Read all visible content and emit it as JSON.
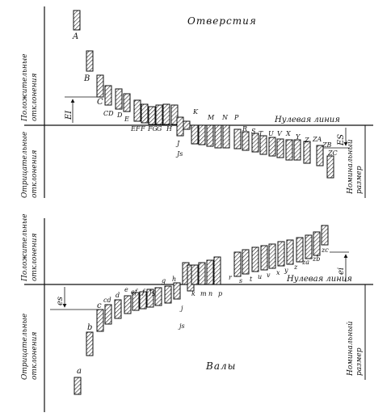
{
  "holes": {
    "title": "Отверстия",
    "zero_line_label": "Нулевая линия",
    "positive_label": [
      "Положительные",
      "отклонения"
    ],
    "negative_label": [
      "Отрицательные",
      "отклонения"
    ],
    "nominal_label": [
      "Номинальный",
      "размер"
    ],
    "EI_label": "EI",
    "ES_label": "ES",
    "letters": [
      "A",
      "B",
      "C",
      "CD",
      "D",
      "E",
      "EF",
      "F",
      "FG",
      "G",
      "H",
      "J",
      "Js",
      "K",
      "M",
      "N",
      "P",
      "R",
      "S",
      "T",
      "U",
      "V",
      "X",
      "Y",
      "Z",
      "ZA",
      "ZB",
      "ZC"
    ]
  },
  "shafts": {
    "title": "Валы",
    "zero_line_label": "Нулевая линия",
    "positive_label": [
      "Положительные",
      "отклонения"
    ],
    "negative_label": [
      "Отрицательные",
      "отклонения"
    ],
    "nominal_label": [
      "Номинальный",
      "размер"
    ],
    "es_label": "es",
    "ei_label": "ei",
    "letters": [
      "a",
      "b",
      "c",
      "cd",
      "d",
      "e",
      "ef",
      "f",
      "fg",
      "g",
      "h",
      "j",
      "js",
      "k",
      "m",
      "n",
      "p",
      "r",
      "s",
      "t",
      "u",
      "v",
      "x",
      "y",
      "z",
      "za",
      "zb",
      "zc"
    ]
  }
}
